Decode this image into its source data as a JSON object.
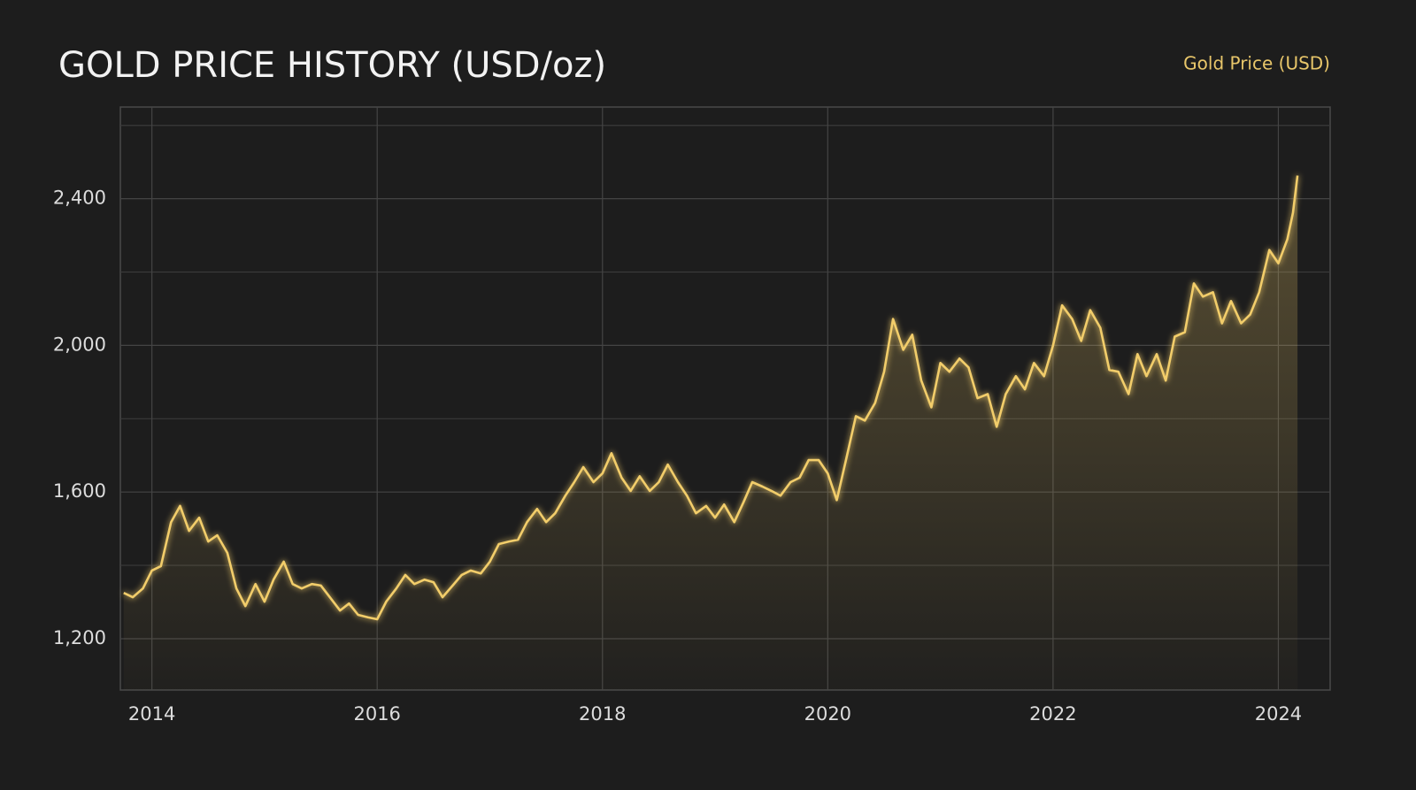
{
  "chart_data": {
    "type": "line",
    "title": "GOLD PRICE HISTORY (USD/oz)",
    "legend": "top-right",
    "grid": true,
    "xlim": [
      2013.72,
      2024.46
    ],
    "xticks": [
      2014,
      2016,
      2018,
      2020,
      2022,
      2024
    ],
    "ylim": [
      1060,
      2650
    ],
    "yticks": [
      {
        "value": 1200,
        "label": "1,200"
      },
      {
        "value": 1600,
        "label": "1,600"
      },
      {
        "value": 2000,
        "label": "2,000"
      },
      {
        "value": 2400,
        "label": "2,400"
      }
    ],
    "minor_yticks": [
      1400,
      1800,
      2200,
      2600
    ],
    "x": [
      2013.75,
      2013.83,
      2013.92,
      2014.0,
      2014.08,
      2014.17,
      2014.25,
      2014.33,
      2014.42,
      2014.5,
      2014.58,
      2014.67,
      2014.75,
      2014.83,
      2014.92,
      2015.0,
      2015.08,
      2015.17,
      2015.25,
      2015.33,
      2015.42,
      2015.5,
      2015.58,
      2015.67,
      2015.75,
      2015.83,
      2015.92,
      2016.0,
      2016.08,
      2016.17,
      2016.25,
      2016.33,
      2016.42,
      2016.5,
      2016.58,
      2016.67,
      2016.75,
      2016.83,
      2016.92,
      2017.0,
      2017.08,
      2017.17,
      2017.25,
      2017.33,
      2017.42,
      2017.5,
      2017.58,
      2017.67,
      2017.75,
      2017.83,
      2017.92,
      2018.0,
      2018.08,
      2018.17,
      2018.25,
      2018.33,
      2018.42,
      2018.5,
      2018.58,
      2018.67,
      2018.75,
      2018.83,
      2018.92,
      2019.0,
      2019.08,
      2019.17,
      2019.25,
      2019.33,
      2019.42,
      2019.5,
      2019.58,
      2019.67,
      2019.75,
      2019.83,
      2019.92,
      2020.0,
      2020.08,
      2020.17,
      2020.25,
      2020.33,
      2020.42,
      2020.5,
      2020.58,
      2020.67,
      2020.75,
      2020.83,
      2020.92,
      2021.0,
      2021.08,
      2021.17,
      2021.25,
      2021.33,
      2021.42,
      2021.5,
      2021.58,
      2021.67,
      2021.75,
      2021.83,
      2021.92,
      2022.0,
      2022.08,
      2022.17,
      2022.25,
      2022.33,
      2022.42,
      2022.5,
      2022.58,
      2022.67,
      2022.75,
      2022.83,
      2022.92,
      2023.0,
      2023.08,
      2023.17,
      2023.25,
      2023.33,
      2023.42,
      2023.5,
      2023.58,
      2023.67,
      2023.75,
      2023.83,
      2023.92,
      2024.0,
      2024.08,
      2024.13,
      2024.17
    ],
    "series": [
      {
        "name": "Gold Price (USD)",
        "color": "#f2cd6b",
        "values": [
          1325,
          1313,
          1337,
          1386,
          1398,
          1518,
          1562,
          1494,
          1530,
          1465,
          1482,
          1434,
          1337,
          1289,
          1349,
          1301,
          1361,
          1410,
          1349,
          1337,
          1349,
          1345,
          1313,
          1277,
          1296,
          1265,
          1258,
          1253,
          1301,
          1337,
          1374,
          1349,
          1361,
          1354,
          1313,
          1345,
          1374,
          1386,
          1378,
          1410,
          1458,
          1465,
          1470,
          1518,
          1554,
          1518,
          1542,
          1590,
          1627,
          1668,
          1627,
          1651,
          1706,
          1639,
          1603,
          1643,
          1603,
          1627,
          1675,
          1627,
          1590,
          1542,
          1562,
          1530,
          1566,
          1518,
          1571,
          1627,
          1615,
          1603,
          1590,
          1627,
          1639,
          1687,
          1687,
          1651,
          1578,
          1699,
          1807,
          1795,
          1843,
          1928,
          2072,
          1988,
          2029,
          1904,
          1831,
          1952,
          1928,
          1964,
          1940,
          1856,
          1867,
          1778,
          1867,
          1916,
          1880,
          1952,
          1916,
          2000,
          2109,
          2072,
          2012,
          2096,
          2048,
          1933,
          1928,
          1867,
          1976,
          1916,
          1976,
          1904,
          2024,
          2036,
          2169,
          2133,
          2145,
          2060,
          2121,
          2060,
          2084,
          2145,
          2260,
          2224,
          2289,
          2362,
          2463
        ]
      }
    ]
  }
}
